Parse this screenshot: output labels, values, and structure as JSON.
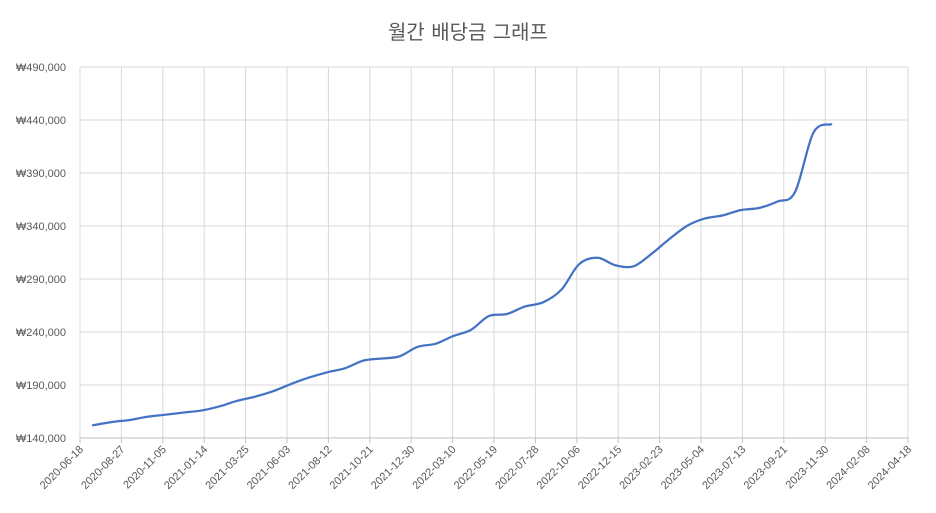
{
  "chart_data": {
    "type": "line",
    "title": "월간 배당금 그래프",
    "xlabel": "",
    "ylabel": "",
    "ylim": [
      140000,
      490000
    ],
    "ytick_values": [
      140000,
      190000,
      240000,
      290000,
      340000,
      390000,
      440000,
      490000
    ],
    "ytick_labels": [
      "₩140,000",
      "₩190,000",
      "₩240,000",
      "₩290,000",
      "₩340,000",
      "₩390,000",
      "₩440,000",
      "₩490,000"
    ],
    "xlim": [
      "2020-06-18",
      "2024-04-18"
    ],
    "xtick_labels": [
      "2020-06-18",
      "2020-08-27",
      "2020-11-05",
      "2021-01-14",
      "2021-03-25",
      "2021-06-03",
      "2021-08-12",
      "2021-10-21",
      "2021-12-30",
      "2022-03-10",
      "2022-05-19",
      "2022-07-28",
      "2022-10-06",
      "2022-12-15",
      "2023-02-23",
      "2023-05-04",
      "2023-07-13",
      "2023-09-21",
      "2023-11-30",
      "2024-02-08",
      "2024-04-18"
    ],
    "grid": true,
    "legend": "none",
    "series": [
      {
        "color": "#4472c4",
        "x": [
          "2020-07-10",
          "2020-08-10",
          "2020-09-10",
          "2020-10-10",
          "2020-11-10",
          "2020-12-10",
          "2021-01-10",
          "2021-02-10",
          "2021-03-10",
          "2021-04-10",
          "2021-05-10",
          "2021-06-10",
          "2021-07-10",
          "2021-08-10",
          "2021-09-10",
          "2021-10-10",
          "2021-11-10",
          "2021-12-10",
          "2022-01-10",
          "2022-02-10",
          "2022-03-10",
          "2022-04-10",
          "2022-05-10",
          "2022-06-10",
          "2022-07-10",
          "2022-08-10",
          "2022-09-10",
          "2022-10-10",
          "2022-11-10",
          "2022-12-10",
          "2023-01-10",
          "2023-02-10",
          "2023-03-10",
          "2023-04-10",
          "2023-05-10",
          "2023-06-10",
          "2023-07-10",
          "2023-08-10",
          "2023-09-10",
          "2023-10-10",
          "2023-11-10",
          "2023-12-10"
        ],
        "values": [
          152000,
          155000,
          157000,
          160000,
          162000,
          164000,
          166000,
          170000,
          175000,
          179000,
          184000,
          191000,
          197000,
          202000,
          206000,
          213000,
          215000,
          217000,
          226000,
          229000,
          236000,
          242000,
          255000,
          257000,
          264000,
          268000,
          280000,
          304000,
          310000,
          303000,
          302000,
          314000,
          327000,
          340000,
          347000,
          350000,
          355000,
          357000,
          363000,
          372000,
          428000,
          436000
        ]
      }
    ]
  }
}
